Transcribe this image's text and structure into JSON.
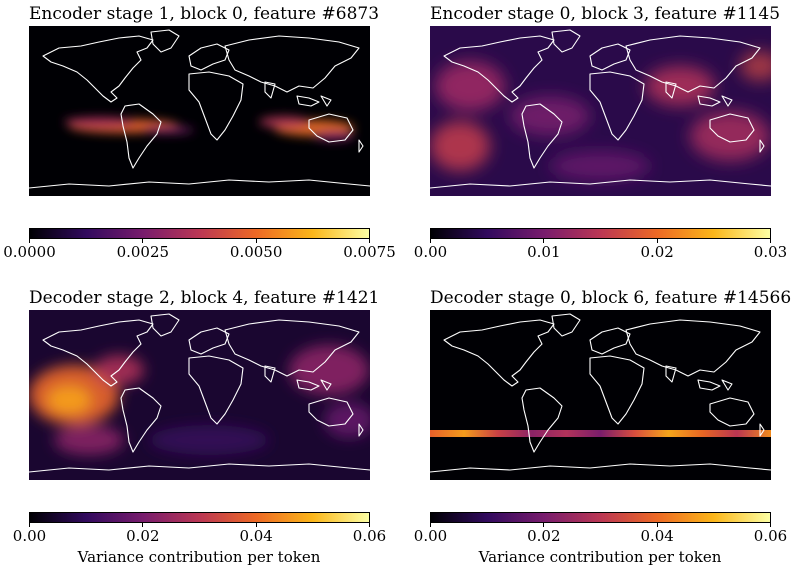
{
  "chart_data": [
    {
      "type": "heatmap",
      "title": "Encoder stage 1, block 0, feature #6873",
      "colormap": "inferno",
      "colorbar": {
        "range": [
          0.0,
          0.0075
        ],
        "ticks": [
          "0.0000",
          "0.0025",
          "0.0050",
          "0.0075"
        ],
        "label": ""
      },
      "pattern": "concentrated band over southern tropics: South America / South Atlantic and Indian Ocean to Australia"
    },
    {
      "type": "heatmap",
      "title": "Encoder stage 0, block 3, feature #1145",
      "colormap": "inferno",
      "colorbar": {
        "range": [
          0.0,
          0.03
        ],
        "ticks": [
          "0.00",
          "0.01",
          "0.02",
          "0.03"
        ],
        "label": ""
      },
      "pattern": "widespread moderate values over oceans with patchy grid texture"
    },
    {
      "type": "heatmap",
      "title": "Decoder stage 2, block 4, feature #1421",
      "colormap": "inferno",
      "colorbar": {
        "range": [
          0.0,
          0.06
        ],
        "ticks": [
          "0.00",
          "0.02",
          "0.04",
          "0.06"
        ],
        "label": "Variance contribution per token"
      },
      "pattern": "strong swirling values over eastern Pacific, weaker over western Pacific"
    },
    {
      "type": "heatmap",
      "title": "Decoder stage 0, block 6, feature #14566",
      "colormap": "inferno",
      "colorbar": {
        "range": [
          0.0,
          0.06
        ],
        "ticks": [
          "0.00",
          "0.02",
          "0.04",
          "0.06"
        ],
        "label": "Variance contribution per token"
      },
      "pattern": "single thin latitude band near 40S"
    }
  ],
  "colors": {
    "background": "#000004",
    "coast": "#ffffff"
  }
}
